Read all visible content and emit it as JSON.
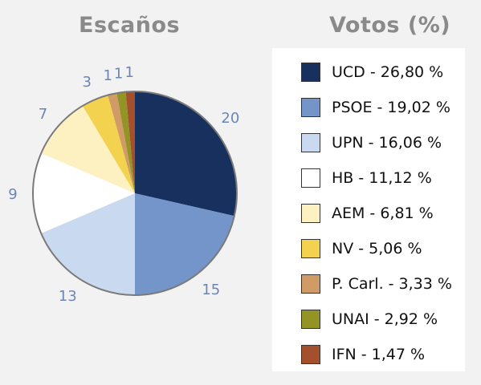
{
  "titles": {
    "seats": "Escaños",
    "votes": "Votos (%)"
  },
  "chart_data": [
    {
      "type": "pie",
      "title": "Escaños",
      "categories": [
        "UCD",
        "PSOE",
        "UPN",
        "HB",
        "AEM",
        "NV",
        "P. Carl.",
        "UNAI",
        "IFN"
      ],
      "values": [
        20,
        15,
        13,
        9,
        7,
        3,
        1,
        1,
        1
      ],
      "data_labels": [
        "20",
        "15",
        "13",
        "9",
        "7",
        "3",
        "1",
        "1",
        "1"
      ],
      "colors": [
        "#17305e",
        "#7395c9",
        "#c9d9ef",
        "#ffffff",
        "#fdf1c2",
        "#f3d250",
        "#d19b67",
        "#939326",
        "#a4502c"
      ]
    },
    {
      "type": "table",
      "title": "Votos (%)",
      "legend": [
        {
          "label": "UCD - 26,80 %",
          "color": "#17305e"
        },
        {
          "label": "PSOE - 19,02 %",
          "color": "#7395c9"
        },
        {
          "label": "UPN - 16,06 %",
          "color": "#c9d9ef"
        },
        {
          "label": "HB - 11,12 %",
          "color": "#ffffff"
        },
        {
          "label": "AEM - 6,81 %",
          "color": "#fdf1c2"
        },
        {
          "label": "NV - 5,06 %",
          "color": "#f3d250"
        },
        {
          "label": "P. Carl. - 3,33 %",
          "color": "#d19b67"
        },
        {
          "label": "UNAI - 2,92 %",
          "color": "#939326"
        },
        {
          "label": "IFN - 1,47 %",
          "color": "#a4502c"
        }
      ]
    }
  ]
}
